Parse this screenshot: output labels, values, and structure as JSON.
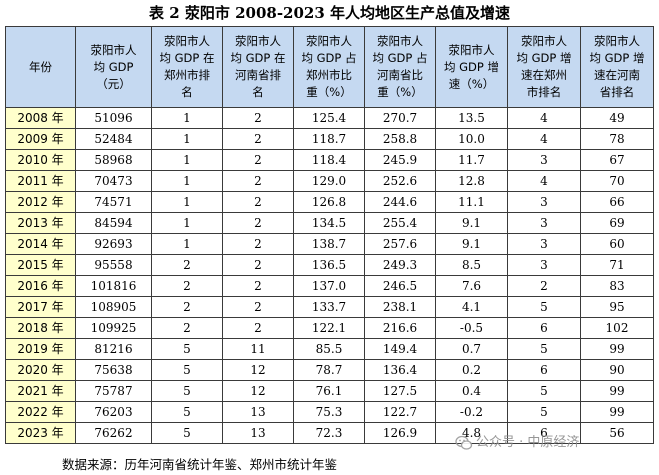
{
  "title": "表 2 荥阳市 2008-2023 年人均地区生产总值及增速",
  "headers": [
    [
      "年份"
    ],
    [
      "荥阳市人",
      "均 GDP",
      "（元）"
    ],
    [
      "荥阳市人",
      "均 GDP 在",
      "郑州市排",
      "名"
    ],
    [
      "荥阳市人",
      "均 GDP 在",
      "河南省排",
      "名"
    ],
    [
      "荥阳市人",
      "均 GDP 占",
      "郑州市比",
      "重（%）"
    ],
    [
      "荥阳市人",
      "均 GDP 占",
      "河南省比",
      "重（%）"
    ],
    [
      "荥阳市人",
      "均 GDP 增",
      "速（%）"
    ],
    [
      "荥阳市人",
      "均 GDP 增",
      "速在郑州",
      "市排名"
    ],
    [
      "荥阳市人",
      "均 GDP 增",
      "速在河南",
      "省排名"
    ]
  ],
  "rows": [
    [
      "2008 年",
      "51096",
      "1",
      "2",
      "125.4",
      "270.7",
      "13.5",
      "4",
      "49"
    ],
    [
      "2009 年",
      "52484",
      "1",
      "2",
      "118.7",
      "258.8",
      "10.0",
      "4",
      "78"
    ],
    [
      "2010 年",
      "58968",
      "1",
      "2",
      "118.4",
      "245.9",
      "11.7",
      "3",
      "67"
    ],
    [
      "2011 年",
      "70473",
      "1",
      "2",
      "129.0",
      "252.6",
      "12.8",
      "4",
      "70"
    ],
    [
      "2012 年",
      "74571",
      "1",
      "2",
      "126.8",
      "244.6",
      "11.1",
      "3",
      "66"
    ],
    [
      "2013 年",
      "84594",
      "1",
      "2",
      "134.5",
      "255.4",
      "9.1",
      "3",
      "69"
    ],
    [
      "2014 年",
      "92693",
      "1",
      "2",
      "138.7",
      "257.6",
      "9.1",
      "3",
      "60"
    ],
    [
      "2015 年",
      "95558",
      "2",
      "2",
      "136.5",
      "249.3",
      "8.5",
      "3",
      "71"
    ],
    [
      "2016 年",
      "101816",
      "2",
      "2",
      "137.0",
      "246.5",
      "7.6",
      "2",
      "83"
    ],
    [
      "2017 年",
      "108905",
      "2",
      "2",
      "133.7",
      "238.1",
      "4.1",
      "5",
      "95"
    ],
    [
      "2018 年",
      "109925",
      "2",
      "2",
      "122.1",
      "216.6",
      "-0.5",
      "6",
      "102"
    ],
    [
      "2019 年",
      "81216",
      "5",
      "11",
      "85.5",
      "149.4",
      "0.7",
      "5",
      "99"
    ],
    [
      "2020 年",
      "75638",
      "5",
      "12",
      "78.7",
      "136.4",
      "0.2",
      "6",
      "90"
    ],
    [
      "2021 年",
      "75787",
      "5",
      "12",
      "76.1",
      "127.5",
      "0.4",
      "5",
      "99"
    ],
    [
      "2022 年",
      "76203",
      "5",
      "13",
      "75.3",
      "122.7",
      "-0.2",
      "5",
      "99"
    ],
    [
      "2023 年",
      "76262",
      "5",
      "13",
      "72.3",
      "126.9",
      "4.8",
      "6",
      "56"
    ]
  ],
  "source": "数据来源：历年河南省统计年鉴、郑州市统计年鉴",
  "watermark": "公众号 · 中原经济",
  "colors": {
    "header_bg": "#c5d9f1",
    "year_bg": "#ffffcc",
    "border": "#3a3a3a"
  }
}
